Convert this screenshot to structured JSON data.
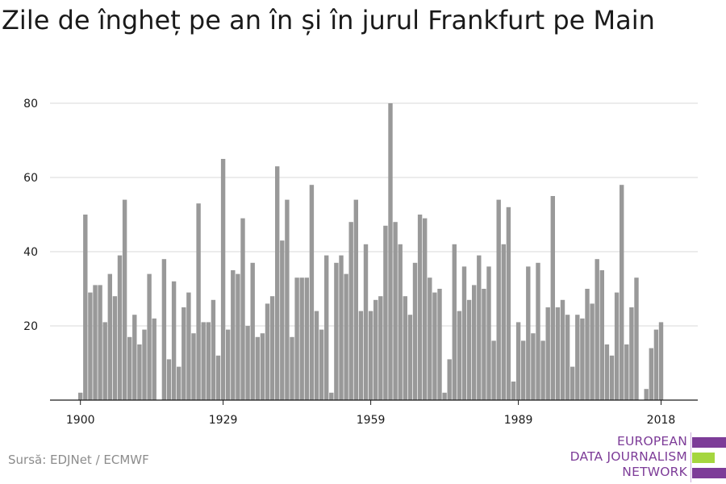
{
  "chart_data": {
    "type": "bar",
    "title": "Zile de îngheț pe an în și în jurul Frankfurt pe Main",
    "xlabel": "",
    "ylabel": "",
    "x": [
      1900,
      1901,
      1902,
      1903,
      1904,
      1905,
      1906,
      1907,
      1908,
      1909,
      1910,
      1911,
      1912,
      1913,
      1914,
      1915,
      1916,
      1917,
      1918,
      1919,
      1920,
      1921,
      1922,
      1923,
      1924,
      1925,
      1926,
      1927,
      1928,
      1929,
      1930,
      1931,
      1932,
      1933,
      1934,
      1935,
      1936,
      1937,
      1938,
      1939,
      1940,
      1941,
      1942,
      1943,
      1944,
      1945,
      1946,
      1947,
      1948,
      1949,
      1950,
      1951,
      1952,
      1953,
      1954,
      1955,
      1956,
      1957,
      1958,
      1959,
      1960,
      1961,
      1962,
      1963,
      1964,
      1965,
      1966,
      1967,
      1968,
      1969,
      1970,
      1971,
      1972,
      1973,
      1974,
      1975,
      1976,
      1977,
      1978,
      1979,
      1980,
      1981,
      1982,
      1983,
      1984,
      1985,
      1986,
      1987,
      1988,
      1989,
      1990,
      1991,
      1992,
      1993,
      1994,
      1995,
      1996,
      1997,
      1998,
      1999,
      2000,
      2001,
      2002,
      2003,
      2004,
      2005,
      2006,
      2007,
      2008,
      2009,
      2010,
      2011,
      2012,
      2013,
      2014,
      2015,
      2016,
      2017,
      2018
    ],
    "values": [
      2,
      50,
      29,
      31,
      31,
      21,
      34,
      28,
      39,
      54,
      17,
      23,
      15,
      19,
      34,
      22,
      0,
      38,
      11,
      32,
      9,
      25,
      29,
      18,
      53,
      21,
      21,
      27,
      12,
      65,
      19,
      35,
      34,
      49,
      20,
      37,
      17,
      18,
      26,
      28,
      63,
      43,
      54,
      17,
      33,
      33,
      33,
      58,
      24,
      19,
      39,
      2,
      37,
      39,
      34,
      48,
      54,
      24,
      42,
      24,
      27,
      28,
      47,
      80,
      48,
      42,
      28,
      23,
      37,
      50,
      49,
      33,
      29,
      30,
      2,
      11,
      42,
      24,
      36,
      27,
      31,
      39,
      30,
      36,
      16,
      54,
      42,
      52,
      5,
      21,
      16,
      36,
      18,
      37,
      16,
      25,
      55,
      25,
      27,
      23,
      9,
      23,
      22,
      30,
      26,
      38,
      35,
      15,
      12,
      29,
      58,
      15,
      25,
      33,
      0,
      3,
      14,
      19,
      21
    ],
    "x_ticks": [
      "1900",
      "1929",
      "1959",
      "1989",
      "2018"
    ],
    "y_ticks": [
      "20",
      "40",
      "60",
      "80"
    ],
    "ylim": [
      0,
      85
    ],
    "grid": true,
    "bar_color": "#999999"
  },
  "source": "Sursă: EDJNet / ECMWF",
  "logo": {
    "line1": "EUROPEAN",
    "line2": "DATA JOURNALISM",
    "line3": "NETWORK",
    "purple": "#7d3c98",
    "green": "#a5d63f"
  }
}
